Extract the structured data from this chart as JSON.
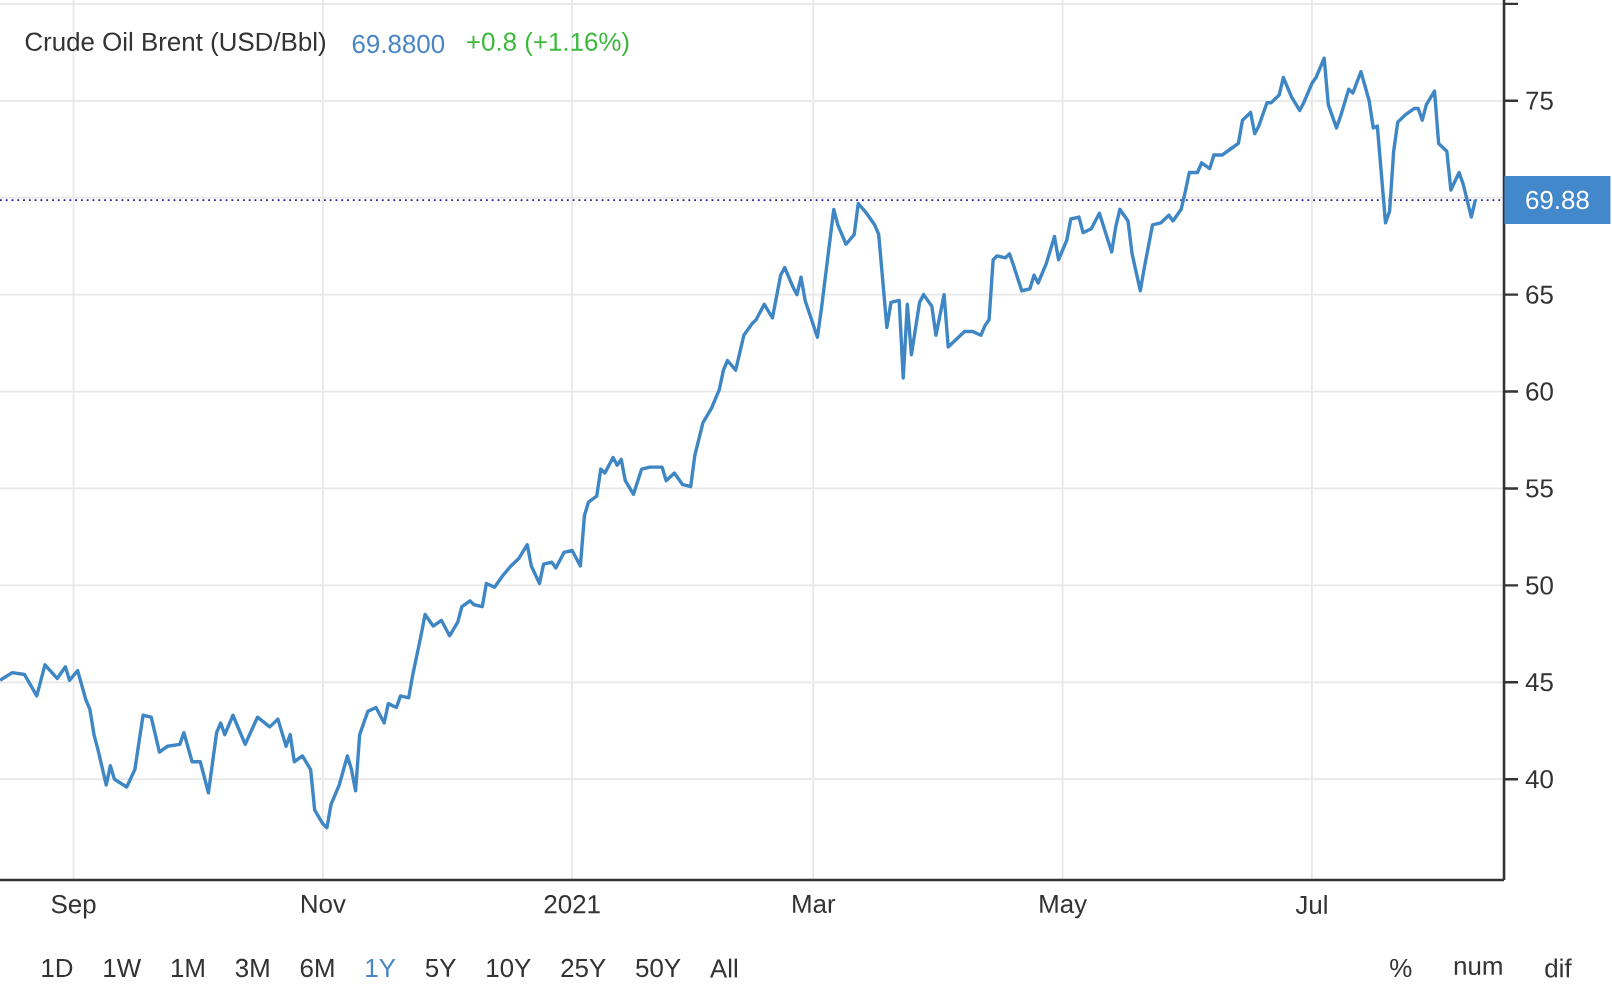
{
  "chart_data": {
    "type": "line",
    "title": "Crude Oil Brent (USD/Bbl)",
    "subtitle": "69.8800",
    "annotations": [
      "+0.8 (+1.16%)",
      "1D",
      "1W",
      "1M",
      "3M",
      "6M",
      "1Y",
      "5Y",
      "10Y",
      "25Y",
      "50Y",
      "All",
      "%",
      "num",
      "dif"
    ],
    "color": "#3f87c4",
    "marker": "none",
    "line_style": "solid",
    "grid": true,
    "xlim": [
      "2020-08-14",
      "2021-08-17"
    ],
    "xticks": [
      {
        "value": "2020-09-01",
        "label": "Sep"
      },
      {
        "value": "2020-11-01",
        "label": "Nov"
      },
      {
        "value": "2021-01-01",
        "label": "2021"
      },
      {
        "value": "2021-03-01",
        "label": "Mar"
      },
      {
        "value": "2021-05-01",
        "label": "May"
      },
      {
        "value": "2021-07-01",
        "label": "Jul"
      }
    ],
    "ylim": [
      34.8,
      80.2
    ],
    "yticks": [
      40,
      45,
      50,
      55,
      60,
      65,
      {
        "value": 70,
        "label": null
      },
      75,
      {
        "value": 80,
        "label": null
      }
    ],
    "ref_lines": [
      {
        "axis": "y",
        "value": 69.88,
        "label": "69.88",
        "color": "#2020a0",
        "line_style": "dotted"
      }
    ],
    "x": [
      "2020-08-14",
      "2020-08-17",
      "2020-08-20",
      "2020-08-23",
      "2020-08-25",
      "2020-08-28",
      "2020-08-30",
      "2020-08-31",
      "2020-09-02",
      "2020-09-04",
      "2020-09-05",
      "2020-09-06",
      "2020-09-07",
      "2020-09-09",
      "2020-09-10",
      "2020-09-11",
      "2020-09-14",
      "2020-09-16",
      "2020-09-18",
      "2020-09-20",
      "2020-09-22",
      "2020-09-24",
      "2020-09-27",
      "2020-09-28",
      "2020-09-30",
      "2020-10-02",
      "2020-10-04",
      "2020-10-06",
      "2020-10-07",
      "2020-10-08",
      "2020-10-10",
      "2020-10-13",
      "2020-10-16",
      "2020-10-19",
      "2020-10-21",
      "2020-10-23",
      "2020-10-24",
      "2020-10-25",
      "2020-10-27",
      "2020-10-29",
      "2020-10-30",
      "2020-11-01",
      "2020-11-02",
      "2020-11-03",
      "2020-11-05",
      "2020-11-07",
      "2020-11-08",
      "2020-11-09",
      "2020-11-10",
      "2020-11-12",
      "2020-11-14",
      "2020-11-16",
      "2020-11-17",
      "2020-11-19",
      "2020-11-20",
      "2020-11-22",
      "2020-11-23",
      "2020-11-25",
      "2020-11-26",
      "2020-11-28",
      "2020-11-30",
      "2020-12-02",
      "2020-12-04",
      "2020-12-05",
      "2020-12-07",
      "2020-12-08",
      "2020-12-10",
      "2020-12-11",
      "2020-12-13",
      "2020-12-15",
      "2020-12-17",
      "2020-12-19",
      "2020-12-21",
      "2020-12-22",
      "2020-12-24",
      "2020-12-25",
      "2020-12-27",
      "2020-12-28",
      "2020-12-30",
      "2021-01-01",
      "2021-01-03",
      "2021-01-04",
      "2021-01-05",
      "2021-01-07",
      "2021-01-08",
      "2021-01-09",
      "2021-01-11",
      "2021-01-12",
      "2021-01-13",
      "2021-01-14",
      "2021-01-16",
      "2021-01-18",
      "2021-01-20",
      "2021-01-23",
      "2021-01-24",
      "2021-01-26",
      "2021-01-28",
      "2021-01-30",
      "2021-01-31",
      "2021-02-02",
      "2021-02-04",
      "2021-02-06",
      "2021-02-07",
      "2021-02-08",
      "2021-02-10",
      "2021-02-12",
      "2021-02-14",
      "2021-02-15",
      "2021-02-17",
      "2021-02-19",
      "2021-02-21",
      "2021-02-22",
      "2021-02-24",
      "2021-02-25",
      "2021-02-26",
      "2021-02-27",
      "2021-03-02",
      "2021-03-03",
      "2021-03-06",
      "2021-03-07",
      "2021-03-09",
      "2021-03-11",
      "2021-03-12",
      "2021-03-14",
      "2021-03-16",
      "2021-03-17",
      "2021-03-19",
      "2021-03-20",
      "2021-03-22",
      "2021-03-23",
      "2021-03-24",
      "2021-03-25",
      "2021-03-27",
      "2021-03-28",
      "2021-03-30",
      "2021-03-31",
      "2021-04-02",
      "2021-04-03",
      "2021-04-05",
      "2021-04-07",
      "2021-04-09",
      "2021-04-11",
      "2021-04-12",
      "2021-04-13",
      "2021-04-14",
      "2021-04-15",
      "2021-04-17",
      "2021-04-18",
      "2021-04-19",
      "2021-04-21",
      "2021-04-23",
      "2021-04-24",
      "2021-04-25",
      "2021-04-27",
      "2021-04-29",
      "2021-04-30",
      "2021-05-02",
      "2021-05-03",
      "2021-05-05",
      "2021-05-06",
      "2021-05-08",
      "2021-05-10",
      "2021-05-13",
      "2021-05-14",
      "2021-05-15",
      "2021-05-17",
      "2021-05-18",
      "2021-05-20",
      "2021-05-21",
      "2021-05-23",
      "2021-05-25",
      "2021-05-27",
      "2021-05-28",
      "2021-05-30",
      "2021-05-31",
      "2021-06-01",
      "2021-06-03",
      "2021-06-04",
      "2021-06-06",
      "2021-06-07",
      "2021-06-09",
      "2021-06-11",
      "2021-06-13",
      "2021-06-14",
      "2021-06-16",
      "2021-06-17",
      "2021-06-18",
      "2021-06-20",
      "2021-06-21",
      "2021-06-23",
      "2021-06-24",
      "2021-06-26",
      "2021-06-28",
      "2021-06-29",
      "2021-07-01",
      "2021-07-02",
      "2021-07-04",
      "2021-07-05",
      "2021-07-07",
      "2021-07-08",
      "2021-07-10",
      "2021-07-11",
      "2021-07-13",
      "2021-07-15",
      "2021-07-16",
      "2021-07-17",
      "2021-07-19",
      "2021-07-20",
      "2021-07-21",
      "2021-07-22",
      "2021-07-24",
      "2021-07-26",
      "2021-07-27",
      "2021-07-28",
      "2021-07-29",
      "2021-07-31",
      "2021-08-01",
      "2021-08-03",
      "2021-08-04",
      "2021-08-06",
      "2021-08-07",
      "2021-08-09",
      "2021-08-10"
    ],
    "values": [
      45.1,
      45.5,
      45.4,
      44.3,
      45.9,
      45.2,
      45.8,
      45.1,
      45.6,
      44.1,
      43.6,
      42.3,
      41.5,
      39.7,
      40.7,
      40.0,
      39.6,
      40.5,
      43.3,
      43.2,
      41.4,
      41.7,
      41.8,
      42.4,
      40.9,
      40.9,
      39.3,
      42.4,
      42.9,
      42.3,
      43.3,
      41.8,
      43.2,
      42.7,
      43.1,
      41.7,
      42.3,
      40.9,
      41.2,
      40.5,
      38.4,
      37.7,
      37.5,
      38.7,
      39.7,
      41.2,
      40.5,
      39.4,
      42.3,
      43.5,
      43.7,
      42.9,
      43.9,
      43.7,
      44.3,
      44.2,
      45.4,
      47.4,
      48.5,
      47.9,
      48.2,
      47.4,
      48.1,
      48.9,
      49.2,
      49.0,
      48.9,
      50.1,
      49.9,
      50.5,
      51.0,
      51.4,
      52.1,
      51.0,
      50.1,
      51.1,
      51.2,
      50.9,
      51.7,
      51.8,
      51.0,
      53.6,
      54.3,
      54.6,
      56.0,
      55.8,
      56.6,
      56.2,
      56.5,
      55.4,
      54.7,
      56.0,
      56.1,
      56.1,
      55.4,
      55.8,
      55.2,
      55.1,
      56.7,
      58.4,
      59.1,
      60.1,
      61.1,
      61.6,
      61.1,
      62.9,
      63.5,
      63.7,
      64.5,
      63.8,
      66.0,
      66.4,
      65.4,
      65.0,
      65.9,
      64.7,
      62.8,
      64.3,
      69.4,
      68.6,
      67.6,
      68.1,
      69.7,
      69.2,
      68.6,
      68.1,
      63.3,
      64.6,
      64.7,
      60.7,
      64.5,
      61.9,
      64.6,
      65.0,
      64.4,
      62.9,
      65.0,
      62.3,
      62.7,
      63.1,
      63.1,
      62.9,
      63.4,
      63.7,
      66.8,
      67.0,
      66.9,
      67.1,
      66.5,
      65.2,
      65.3,
      66.0,
      65.6,
      66.6,
      68.0,
      66.8,
      67.8,
      68.9,
      69.0,
      68.2,
      68.4,
      69.2,
      67.2,
      68.5,
      69.4,
      68.8,
      67.1,
      65.2,
      66.4,
      68.6,
      68.7,
      69.1,
      68.8,
      69.4,
      70.3,
      71.3,
      71.3,
      71.8,
      71.5,
      72.2,
      72.2,
      72.5,
      72.8,
      74.0,
      74.4,
      73.3,
      73.7,
      74.9,
      74.9,
      75.3,
      76.2,
      75.2,
      74.5,
      74.9,
      75.9,
      76.2,
      77.2,
      74.8,
      73.6,
      74.2,
      75.6,
      75.4,
      76.5,
      75.0,
      73.6,
      73.7,
      68.7,
      69.3,
      72.4,
      73.9,
      74.3,
      74.6,
      74.6,
      74.0,
      74.8,
      75.5,
      72.8,
      72.4,
      70.4,
      71.3,
      70.7,
      69.0,
      69.9
    ]
  }
}
